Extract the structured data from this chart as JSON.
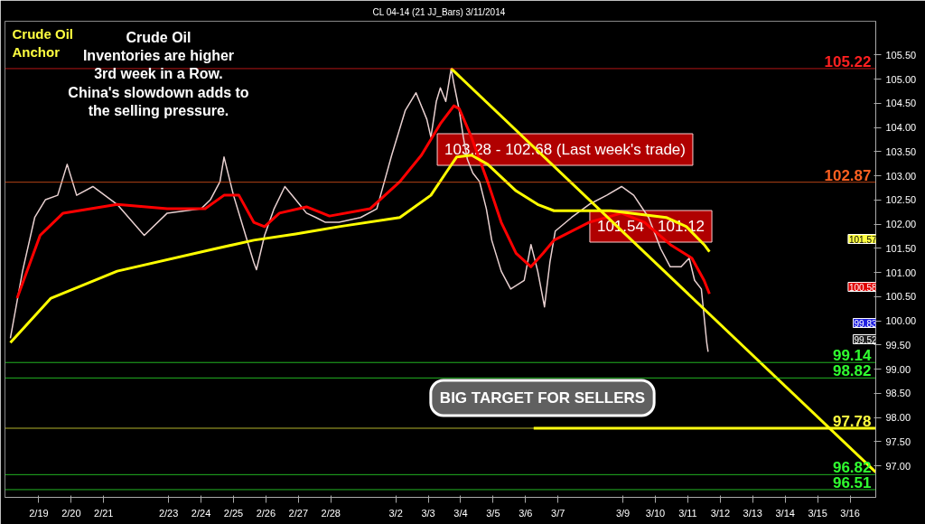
{
  "chart_data": {
    "type": "line",
    "title": "CL 04-14 (21 JJ_Bars)  3/11/2014",
    "xlim": [
      "2014-02-17T23:00",
      "2014-03-16T19:00"
    ],
    "ylim": [
      96.35,
      106.2
    ],
    "xticks": [
      {
        "value": "2014-02-19",
        "label": "2/19"
      },
      {
        "value": "2014-02-20",
        "label": "2/20"
      },
      {
        "value": "2014-02-21",
        "label": "2/21"
      },
      {
        "value": "2014-02-23",
        "label": "2/23"
      },
      {
        "value": "2014-02-24",
        "label": "2/24"
      },
      {
        "value": "2014-02-25",
        "label": "2/25"
      },
      {
        "value": "2014-02-26",
        "label": "2/26"
      },
      {
        "value": "2014-02-27",
        "label": "2/27"
      },
      {
        "value": "2014-02-28",
        "label": "2/28"
      },
      {
        "value": "2014-03-02",
        "label": "3/2"
      },
      {
        "value": "2014-03-03",
        "label": "3/3"
      },
      {
        "value": "2014-03-04",
        "label": "3/4"
      },
      {
        "value": "2014-03-05",
        "label": "3/5"
      },
      {
        "value": "2014-03-06",
        "label": "3/6"
      },
      {
        "value": "2014-03-07",
        "label": "3/7"
      },
      {
        "value": "2014-03-09",
        "label": "3/9"
      },
      {
        "value": "2014-03-10",
        "label": "3/10"
      },
      {
        "value": "2014-03-11",
        "label": "3/11"
      },
      {
        "value": "2014-03-12",
        "label": "3/12"
      },
      {
        "value": "2014-03-13",
        "label": "3/13"
      },
      {
        "value": "2014-03-14",
        "label": "3/14"
      },
      {
        "value": "2014-03-15",
        "label": "3/15"
      },
      {
        "value": "2014-03-16",
        "label": "3/16"
      }
    ],
    "yticks": [
      {
        "value": 97,
        "label": "97.00"
      },
      {
        "value": 97.5,
        "label": "97.50"
      },
      {
        "value": 98,
        "label": "98.00"
      },
      {
        "value": 98.5,
        "label": "98.50"
      },
      {
        "value": 99,
        "label": "99.00"
      },
      {
        "value": 99.5,
        "label": "99.50"
      },
      {
        "value": 100,
        "label": "100.00"
      },
      {
        "value": 100.5,
        "label": "100.50"
      },
      {
        "value": 101,
        "label": "101.00"
      },
      {
        "value": 101.5,
        "label": "101.50"
      },
      {
        "value": 102,
        "label": "102.00"
      },
      {
        "value": 102.5,
        "label": "102.50"
      },
      {
        "value": 103,
        "label": "103.00"
      },
      {
        "value": 103.5,
        "label": "103.50"
      },
      {
        "value": 104,
        "label": "104.00"
      },
      {
        "value": 104.5,
        "label": "104.50"
      },
      {
        "value": 105,
        "label": "105.00"
      },
      {
        "value": 105.5,
        "label": "105.50"
      }
    ],
    "grid": false,
    "series": [
      {
        "color": "#e8d0d0",
        "x": [
          "2014-02-18T03:00",
          "2014-02-18T12:00",
          "2014-02-18T21:00",
          "2014-02-19T05:00",
          "2014-02-19T14:00",
          "2014-02-19T21:00",
          "2014-02-20T04:00",
          "2014-02-20T16:00",
          "2014-02-21T10:00",
          "2014-02-22T06:00",
          "2014-02-22T23:00",
          "2014-02-24T00:00",
          "2014-02-24T07:00",
          "2014-02-24T14:00",
          "2014-02-24T17:00",
          "2014-02-25T00:00",
          "2014-02-25T08:00",
          "2014-02-25T15:00",
          "2014-02-25T17:00",
          "2014-02-25T23:00",
          "2014-02-26T06:00",
          "2014-02-26T14:00",
          "2014-02-26T22:00",
          "2014-02-27T06:00",
          "2014-02-27T13:00",
          "2014-02-27T20:00",
          "2014-02-28T06:00",
          "2014-02-28T22:00",
          "2014-03-01T10:00",
          "2014-03-01T21:00",
          "2014-03-02T07:00",
          "2014-03-02T15:00",
          "2014-03-02T23:00",
          "2014-03-03T02:00",
          "2014-03-03T06:00",
          "2014-03-03T09:00",
          "2014-03-03T13:00",
          "2014-03-03T17:00",
          "2014-03-03T19:00",
          "2014-03-03T21:00",
          "2014-03-03T23:00",
          "2014-03-04T02:00",
          "2014-03-04T05:00",
          "2014-03-04T09:00",
          "2014-03-04T14:00",
          "2014-03-04T19:00",
          "2014-03-04T23:00",
          "2014-03-05T06:00",
          "2014-03-05T13:00",
          "2014-03-05T23:00",
          "2014-03-06T04:00",
          "2014-03-06T09:00",
          "2014-03-06T14:00",
          "2014-03-06T18:00",
          "2014-03-06T22:00",
          "2014-03-07T10:00",
          "2014-03-07T23:00",
          "2014-03-08T12:00",
          "2014-03-08T23:00",
          "2014-03-09T08:00",
          "2014-03-09T19:00",
          "2014-03-10T04:00",
          "2014-03-10T11:00",
          "2014-03-10T19:00",
          "2014-03-11T01:00",
          "2014-03-11T05:00",
          "2014-03-11T10:00",
          "2014-03-11T14:00",
          "2014-03-11T15:00"
        ],
        "values": [
          99.64,
          101.03,
          102.14,
          102.51,
          102.6,
          103.24,
          102.6,
          102.78,
          102.41,
          101.77,
          102.23,
          102.32,
          102.51,
          102.88,
          103.39,
          102.6,
          101.86,
          101.21,
          101.06,
          101.77,
          102.32,
          102.78,
          102.51,
          102.23,
          102.14,
          102.04,
          102.04,
          102.14,
          102.32,
          103.43,
          104.35,
          104.72,
          104.17,
          103.8,
          104.54,
          104.82,
          104.54,
          105.22,
          104.91,
          104.63,
          104.35,
          103.8,
          103.34,
          103.06,
          102.88,
          102.32,
          101.67,
          101.03,
          100.66,
          100.84,
          101.58,
          101.03,
          100.29,
          101.21,
          101.86,
          102.14,
          102.41,
          102.6,
          102.78,
          102.6,
          102.14,
          101.49,
          101.12,
          101.12,
          101.3,
          100.84,
          100.66,
          99.55,
          99.36
        ]
      },
      {
        "color": "#ff0000",
        "x": [
          "2014-02-18T08:00",
          "2014-02-19T01:00",
          "2014-02-19T18:00",
          "2014-02-21T10:00",
          "2014-02-22T23:00",
          "2014-02-24T03:00",
          "2014-02-24T17:00",
          "2014-02-25T04:00",
          "2014-02-25T15:00",
          "2014-02-25T23:00",
          "2014-02-26T10:00",
          "2014-02-27T06:00",
          "2014-02-27T23:00",
          "2014-03-01T05:00",
          "2014-03-02T03:00",
          "2014-03-02T19:00",
          "2014-03-03T09:00",
          "2014-03-03T19:00",
          "2014-03-03T23:00",
          "2014-03-04T08:00",
          "2014-03-04T20:00",
          "2014-03-05T06:00",
          "2014-03-05T17:00",
          "2014-03-06T04:00",
          "2014-03-06T13:00",
          "2014-03-06T21:00",
          "2014-03-07T23:00",
          "2014-03-08T23:00",
          "2014-03-09T16:00",
          "2014-03-10T11:00",
          "2014-03-11T03:00",
          "2014-03-11T12:00",
          "2014-03-11T16:00"
        ],
        "values": [
          100.47,
          101.77,
          102.23,
          102.41,
          102.32,
          102.32,
          102.6,
          102.6,
          102.04,
          101.95,
          102.23,
          102.36,
          102.17,
          102.32,
          102.88,
          103.43,
          104.08,
          104.45,
          104.39,
          103.8,
          102.88,
          102.04,
          101.4,
          101.12,
          101.4,
          101.67,
          102.04,
          102.23,
          102.04,
          101.58,
          101.3,
          100.84,
          100.56
        ]
      },
      {
        "color": "#ffff00",
        "x": [
          "2014-02-18T03:00",
          "2014-02-19T09:00",
          "2014-02-21T10:00",
          "2014-02-24T10:00",
          "2014-02-25T15:00",
          "2014-02-26T22:00",
          "2014-02-28T06:00",
          "2014-03-02T03:00",
          "2014-03-03T02:00",
          "2014-03-03T13:00",
          "2014-03-03T21:00",
          "2014-03-04T08:00",
          "2014-03-04T20:00",
          "2014-03-05T17:00",
          "2014-03-06T09:00",
          "2014-03-06T21:00",
          "2014-03-08T15:00",
          "2014-03-10T08:00",
          "2014-03-10T23:00",
          "2014-03-11T12:00",
          "2014-03-11T16:00"
        ],
        "values": [
          99.55,
          100.47,
          101.03,
          101.49,
          101.67,
          101.8,
          101.95,
          102.14,
          102.6,
          103.06,
          103.39,
          103.43,
          103.24,
          102.69,
          102.41,
          102.28,
          102.28,
          102.14,
          101.95,
          101.58,
          101.43
        ]
      },
      {
        "color": "#ffff00",
        "x": [
          "2014-03-03T17:00",
          "2014-03-16T19:00"
        ],
        "values": [
          105.22,
          96.87
        ]
      },
      {
        "color": "#ffff00",
        "x": [
          "2014-03-06T06:00",
          "2014-03-16T19:00"
        ],
        "values": [
          97.78,
          97.78
        ]
      }
    ],
    "ref_lines": [
      {
        "axis": "y",
        "value": 105.22,
        "label": "105.22",
        "color": "#ff2020"
      },
      {
        "axis": "y",
        "value": 102.87,
        "label": "102.87",
        "color": "#ff6020"
      },
      {
        "axis": "y",
        "value": 99.14,
        "label": "99.14",
        "color": "#30ff30"
      },
      {
        "axis": "y",
        "value": 98.82,
        "label": "98.82",
        "color": "#30ff30"
      },
      {
        "axis": "y",
        "value": 97.78,
        "label": "97.78",
        "color": "#ffff40"
      },
      {
        "axis": "y",
        "value": 96.82,
        "label": "96.82",
        "color": "#30ff30"
      },
      {
        "axis": "y",
        "value": 96.51,
        "label": "96.51",
        "color": "#30ff30"
      }
    ],
    "annotations": [
      "Crude Oil\nAnchor",
      "Crude Oil\nInventories are higher\n3rd week in a Row.\nChina's slowdown adds to\nthe selling pressure.",
      "103.28 - 102.68 (Last week's trade)",
      "101.54 - 101.12",
      "BIG TARGET FOR SELLERS",
      "101.57",
      "100.58",
      "99.83",
      "99.52"
    ]
  }
}
